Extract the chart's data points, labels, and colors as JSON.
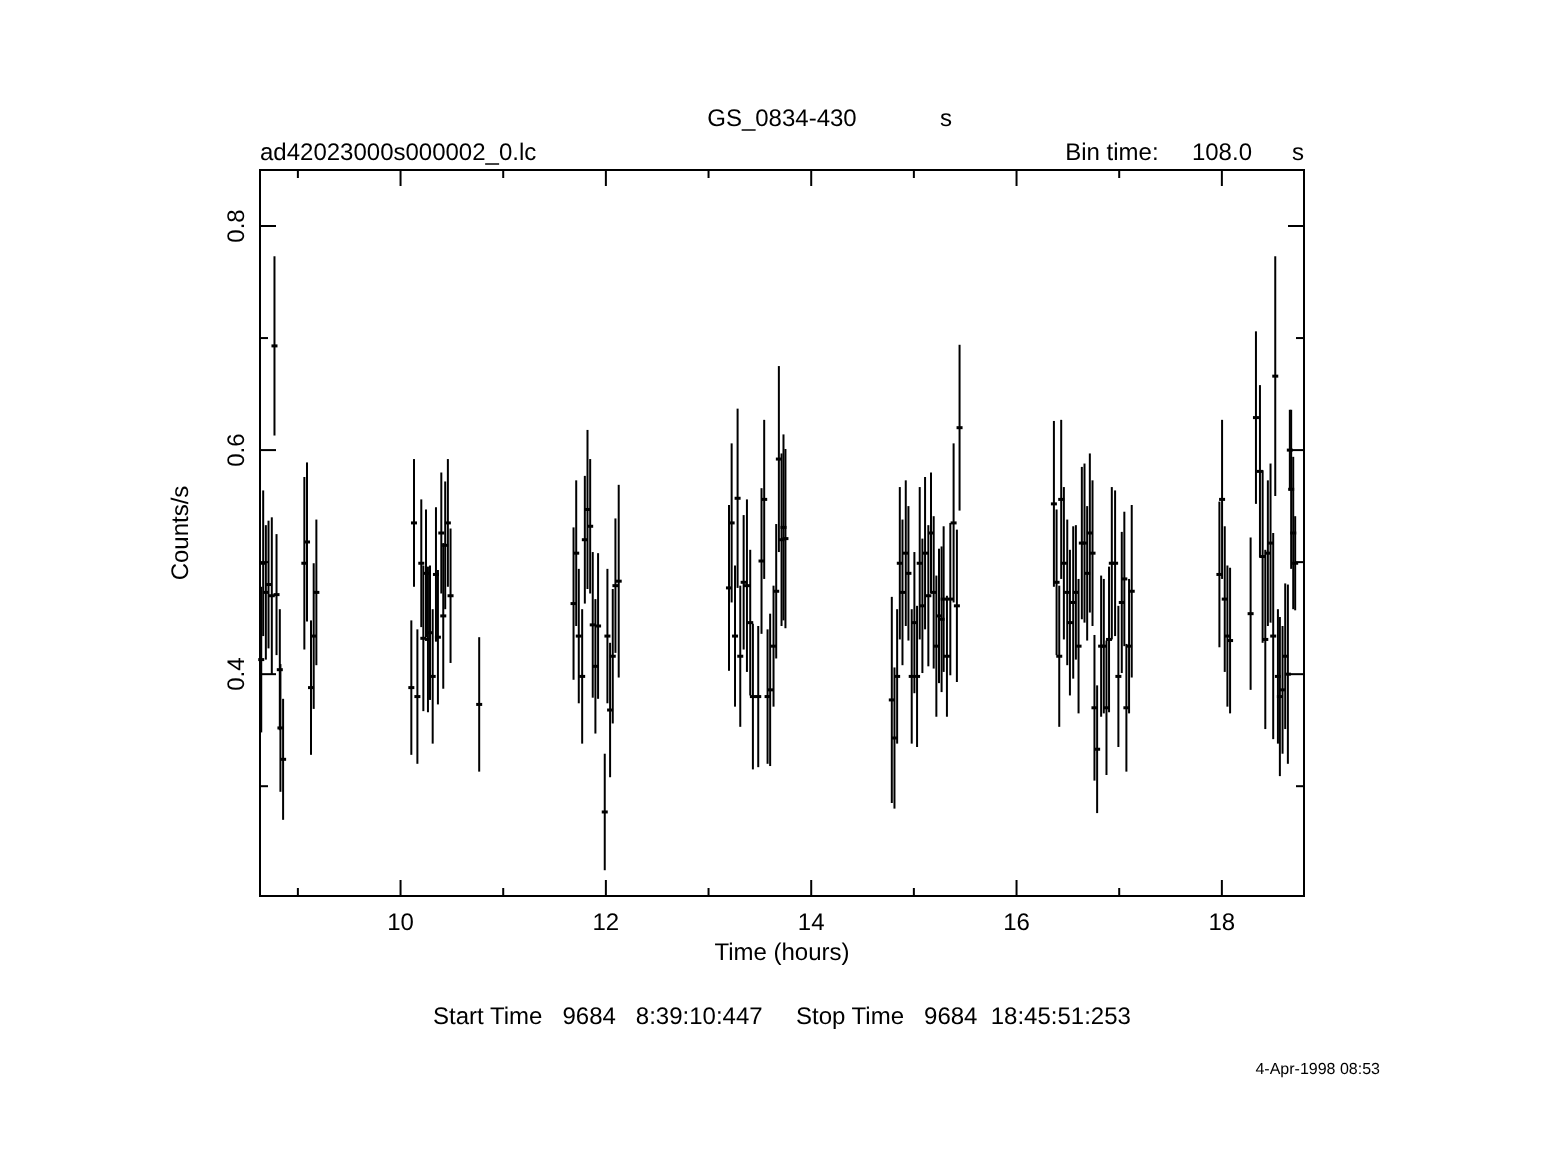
{
  "chart_data": {
    "type": "scatter",
    "title": "GS_0834-430",
    "subtitle": "ad42023000s000002_0.lc",
    "xlabel": "Time (hours)",
    "ylabel": "Counts/s",
    "annotations": [
      "s",
      "Bin time:     108.0      s",
      "Start Time   9684   8:39:10:447     Stop Time   9684  18:45:51:253",
      "4-Apr-1998 08:53"
    ],
    "xlim": [
      8.631,
      18.8
    ],
    "xticks": [
      {
        "value": 9,
        "label": null
      },
      10,
      {
        "value": 11,
        "label": null
      },
      12,
      {
        "value": 13,
        "label": null
      },
      14,
      {
        "value": 15,
        "label": null
      },
      16,
      {
        "value": 17,
        "label": null
      },
      18
    ],
    "ylim": [
      0.202,
      0.85
    ],
    "yticks": [
      {
        "value": 0.3,
        "label": null
      },
      0.4,
      {
        "value": 0.5,
        "label": null
      },
      0.6,
      {
        "value": 0.7,
        "label": null
      },
      0.8
    ],
    "grid": false,
    "series": [
      {
        "color": "#000000",
        "x": [
          8.643,
          8.662,
          8.688,
          8.714,
          8.746,
          8.772,
          8.792,
          8.824,
          8.83,
          8.856,
          9.063,
          9.089,
          9.128,
          9.154,
          9.18,
          10.105,
          10.131,
          10.164,
          10.202,
          10.222,
          10.248,
          10.267,
          10.287,
          10.313,
          10.345,
          10.364,
          10.397,
          10.416,
          10.435,
          10.461,
          10.487,
          10.766,
          11.685,
          11.711,
          11.736,
          11.769,
          11.795,
          11.821,
          11.847,
          11.872,
          11.898,
          11.924,
          11.989,
          12.015,
          12.041,
          12.067,
          12.093,
          12.125,
          13.199,
          13.225,
          13.258,
          13.283,
          13.309,
          13.342,
          13.374,
          13.406,
          13.432,
          13.484,
          13.516,
          13.542,
          13.575,
          13.6,
          13.633,
          13.659,
          13.685,
          13.711,
          13.73,
          13.749,
          14.785,
          14.811,
          14.837,
          14.863,
          14.889,
          14.921,
          14.947,
          14.979,
          15.005,
          15.031,
          15.057,
          15.083,
          15.109,
          15.141,
          15.167,
          15.193,
          15.219,
          15.245,
          15.27,
          15.29,
          15.322,
          15.355,
          15.387,
          15.419,
          15.445,
          16.364,
          16.39,
          16.416,
          16.435,
          16.461,
          16.494,
          16.52,
          16.552,
          16.578,
          16.604,
          16.636,
          16.662,
          16.688,
          16.714,
          16.74,
          16.759,
          16.785,
          16.824,
          16.85,
          16.876,
          16.901,
          16.928,
          16.96,
          16.992,
          17.025,
          17.05,
          17.07,
          17.096,
          17.122,
          17.976,
          18.002,
          18.028,
          18.054,
          18.08,
          18.28,
          18.332,
          18.371,
          18.397,
          18.423,
          18.448,
          18.474,
          18.5,
          18.52,
          18.546,
          18.565,
          18.591,
          18.617,
          18.643,
          18.662,
          18.675,
          18.695,
          18.714
        ],
        "values": [
          0.413,
          0.499,
          0.473,
          0.48,
          0.47,
          0.693,
          0.471,
          0.404,
          0.352,
          0.324,
          0.499,
          0.518,
          0.388,
          0.434,
          0.473,
          0.388,
          0.535,
          0.38,
          0.499,
          0.432,
          0.49,
          0.431,
          0.437,
          0.398,
          0.489,
          0.433,
          0.526,
          0.452,
          0.515,
          0.535,
          0.47,
          0.373,
          0.463,
          0.508,
          0.434,
          0.398,
          0.52,
          0.547,
          0.532,
          0.444,
          0.407,
          0.443,
          0.277,
          0.434,
          0.368,
          0.416,
          0.479,
          0.483,
          0.477,
          0.535,
          0.434,
          0.557,
          0.416,
          0.482,
          0.479,
          0.446,
          0.38,
          0.38,
          0.501,
          0.556,
          0.38,
          0.386,
          0.425,
          0.474,
          0.592,
          0.52,
          0.531,
          0.521,
          0.377,
          0.343,
          0.398,
          0.499,
          0.473,
          0.508,
          0.49,
          0.398,
          0.446,
          0.398,
          0.499,
          0.461,
          0.508,
          0.47,
          0.526,
          0.473,
          0.425,
          0.452,
          0.449,
          0.467,
          0.416,
          0.467,
          0.535,
          0.461,
          0.62,
          0.552,
          0.482,
          0.416,
          0.556,
          0.499,
          0.473,
          0.446,
          0.464,
          0.473,
          0.425,
          0.517,
          0.517,
          0.49,
          0.526,
          0.508,
          0.37,
          0.333,
          0.425,
          0.425,
          0.37,
          0.431,
          0.499,
          0.499,
          0.398,
          0.464,
          0.485,
          0.37,
          0.425,
          0.474,
          0.489,
          0.556,
          0.467,
          0.434,
          0.43,
          0.454,
          0.629,
          0.581,
          0.505,
          0.431,
          0.508,
          0.517,
          0.434,
          0.666,
          0.398,
          0.38,
          0.386,
          0.416,
          0.4,
          0.6,
          0.565,
          0.526,
          0.499
        ],
        "errors": [
          0.065,
          0.065,
          0.06,
          0.057,
          0.07,
          0.08,
          0.054,
          0.054,
          0.057,
          0.054,
          0.077,
          0.071,
          0.06,
          0.065,
          0.065,
          0.06,
          0.057,
          0.06,
          0.057,
          0.065,
          0.057,
          0.065,
          0.06,
          0.06,
          0.06,
          0.06,
          0.054,
          0.065,
          0.057,
          0.057,
          0.06,
          0.06,
          0.068,
          0.065,
          0.06,
          0.06,
          0.057,
          0.071,
          0.06,
          0.065,
          0.06,
          0.065,
          0.052,
          0.06,
          0.06,
          0.06,
          0.06,
          0.086,
          0.074,
          0.071,
          0.063,
          0.08,
          0.063,
          0.06,
          0.077,
          0.065,
          0.065,
          0.063,
          0.065,
          0.071,
          0.06,
          0.068,
          0.054,
          0.06,
          0.083,
          0.077,
          0.083,
          0.08,
          0.092,
          0.063,
          0.06,
          0.068,
          0.065,
          0.065,
          0.06,
          0.06,
          0.063,
          0.063,
          0.068,
          0.06,
          0.068,
          0.063,
          0.054,
          0.068,
          0.063,
          0.06,
          0.065,
          0.065,
          0.054,
          0.068,
          0.071,
          0.068,
          0.074,
          0.074,
          0.065,
          0.063,
          0.071,
          0.068,
          0.065,
          0.065,
          0.068,
          0.06,
          0.06,
          0.068,
          0.071,
          0.06,
          0.071,
          0.065,
          0.065,
          0.057,
          0.063,
          0.06,
          0.06,
          0.065,
          0.068,
          0.065,
          0.063,
          0.063,
          0.06,
          0.057,
          0.06,
          0.077,
          0.065,
          0.071,
          0.065,
          0.063,
          0.065,
          0.068,
          0.077,
          0.077,
          0.077,
          0.08,
          0.065,
          0.071,
          0.092,
          0.107,
          0.06,
          0.071,
          0.057,
          0.065,
          0.08,
          0.036,
          0.071,
          0.068,
          0.042
        ]
      }
    ]
  }
}
